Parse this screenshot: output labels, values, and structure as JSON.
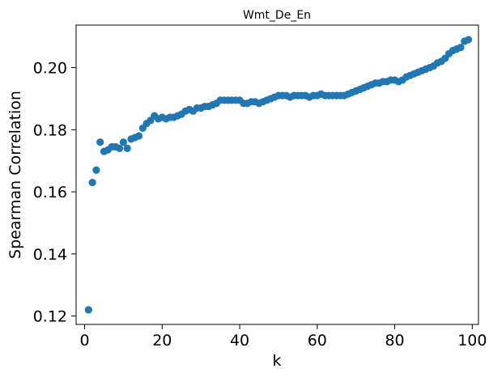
{
  "chart_data": {
    "type": "scatter",
    "title": "Wmt_De_En",
    "xlabel": "k",
    "ylabel": "Spearman Correlation",
    "xlim": [
      -2.2,
      101.6
    ],
    "ylim": [
      0.1173,
      0.2137
    ],
    "xticks": [
      0,
      20,
      40,
      60,
      80,
      100
    ],
    "yticks": [
      0.12,
      0.14,
      0.16,
      0.18,
      0.2
    ],
    "xtick_labels": [
      "0",
      "20",
      "40",
      "60",
      "80",
      "100"
    ],
    "ytick_labels": [
      "0.12",
      "0.14",
      "0.16",
      "0.18",
      "0.20"
    ],
    "grid": false,
    "color": "#1f77b4",
    "series": [
      {
        "x": [
          1,
          2,
          3,
          4,
          5,
          6,
          7,
          8,
          9,
          10,
          11,
          12,
          13,
          14,
          15,
          16,
          17,
          18,
          19,
          20,
          21,
          22,
          23,
          24,
          25,
          26,
          27,
          28,
          29,
          30,
          31,
          32,
          33,
          34,
          35,
          36,
          37,
          38,
          39,
          40,
          41,
          42,
          43,
          44,
          45,
          46,
          47,
          48,
          49,
          50,
          51,
          52,
          53,
          54,
          55,
          56,
          57,
          58,
          59,
          60,
          61,
          62,
          63,
          64,
          65,
          66,
          67,
          68,
          69,
          70,
          71,
          72,
          73,
          74,
          75,
          76,
          77,
          78,
          79,
          80,
          81,
          82,
          83,
          84,
          85,
          86,
          87,
          88,
          89,
          90,
          91,
          92,
          93,
          94,
          95,
          96,
          97,
          98,
          99
        ],
        "y": [
          0.122,
          0.163,
          0.167,
          0.176,
          0.173,
          0.1735,
          0.1745,
          0.1745,
          0.174,
          0.176,
          0.174,
          0.177,
          0.1775,
          0.178,
          0.1805,
          0.182,
          0.183,
          0.1845,
          0.1835,
          0.184,
          0.1835,
          0.184,
          0.184,
          0.1845,
          0.185,
          0.186,
          0.1865,
          0.186,
          0.187,
          0.187,
          0.1875,
          0.1875,
          0.188,
          0.1885,
          0.1895,
          0.1895,
          0.1895,
          0.1895,
          0.1895,
          0.1895,
          0.1885,
          0.1885,
          0.189,
          0.189,
          0.1885,
          0.189,
          0.1895,
          0.19,
          0.1905,
          0.191,
          0.191,
          0.191,
          0.1905,
          0.191,
          0.191,
          0.191,
          0.191,
          0.1905,
          0.191,
          0.191,
          0.1915,
          0.191,
          0.191,
          0.191,
          0.191,
          0.191,
          0.191,
          0.1915,
          0.192,
          0.1925,
          0.193,
          0.1935,
          0.194,
          0.1945,
          0.195,
          0.195,
          0.1955,
          0.1955,
          0.196,
          0.196,
          0.1955,
          0.196,
          0.197,
          0.1975,
          0.198,
          0.1985,
          0.199,
          0.1995,
          0.2,
          0.2005,
          0.2015,
          0.202,
          0.203,
          0.2045,
          0.2055,
          0.206,
          0.2065,
          0.2085,
          0.209
        ]
      }
    ]
  }
}
